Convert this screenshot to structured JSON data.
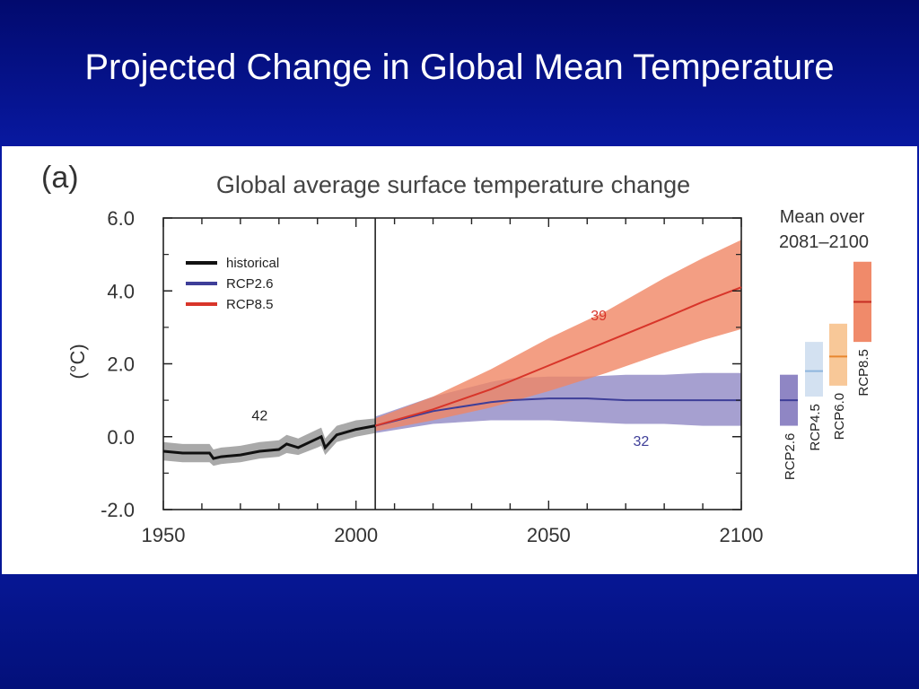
{
  "slide": {
    "title": "Projected Change in Global Mean Temperature"
  },
  "colors": {
    "background": "#0b20b8",
    "historical": "#111111",
    "rcp26": "#3e3e98",
    "rcp45": "#a9c7e6",
    "rcp60": "#f2a85a",
    "rcp85": "#d8352a"
  },
  "chart_data": {
    "type": "line",
    "panel_label": "(a)",
    "title": "Global average surface temperature change",
    "ylabel": "(°C)",
    "xlabel": "",
    "xlim": [
      1950,
      2100
    ],
    "ylim": [
      -2.0,
      6.0
    ],
    "x_ticks": [
      1950,
      2000,
      2050,
      2100
    ],
    "y_ticks": [
      "6.0",
      "4.0",
      "2.0",
      "0.0",
      "-2.0"
    ],
    "y_tick_values": [
      6.0,
      4.0,
      2.0,
      0.0,
      -2.0
    ],
    "divider_year": 2005,
    "legend": [
      "historical",
      "RCP2.6",
      "RCP8.5"
    ],
    "legend_position": "top-left",
    "series": [
      {
        "name": "historical",
        "color": "#111111",
        "x": [
          1950,
          1955,
          1960,
          1962,
          1963,
          1965,
          1970,
          1975,
          1980,
          1982,
          1985,
          1990,
          1991,
          1992,
          1995,
          2000,
          2005
        ],
        "y": [
          -0.4,
          -0.45,
          -0.45,
          -0.45,
          -0.6,
          -0.55,
          -0.5,
          -0.4,
          -0.35,
          -0.2,
          -0.3,
          -0.05,
          0.0,
          -0.3,
          0.05,
          0.2,
          0.3
        ],
        "band_low": [
          -0.65,
          -0.7,
          -0.7,
          -0.7,
          -0.8,
          -0.75,
          -0.7,
          -0.6,
          -0.55,
          -0.45,
          -0.5,
          -0.3,
          -0.25,
          -0.5,
          -0.15,
          0.0,
          0.1
        ],
        "band_high": [
          -0.15,
          -0.2,
          -0.2,
          -0.2,
          -0.35,
          -0.3,
          -0.25,
          -0.15,
          -0.1,
          0.05,
          -0.05,
          0.2,
          0.25,
          -0.05,
          0.3,
          0.45,
          0.5
        ],
        "models": "42"
      },
      {
        "name": "RCP2.6",
        "color": "#3e3e98",
        "x": [
          2005,
          2020,
          2035,
          2040,
          2050,
          2060,
          2070,
          2080,
          2090,
          2100
        ],
        "y": [
          0.3,
          0.7,
          0.95,
          1.0,
          1.05,
          1.05,
          1.0,
          1.0,
          1.0,
          1.0
        ],
        "band_low": [
          0.1,
          0.35,
          0.45,
          0.45,
          0.45,
          0.4,
          0.35,
          0.35,
          0.3,
          0.3
        ],
        "band_high": [
          0.55,
          1.1,
          1.5,
          1.6,
          1.65,
          1.65,
          1.7,
          1.7,
          1.75,
          1.75
        ],
        "models": "32"
      },
      {
        "name": "RCP8.5",
        "color": "#d8352a",
        "x": [
          2005,
          2020,
          2035,
          2050,
          2065,
          2080,
          2090,
          2100
        ],
        "y": [
          0.3,
          0.75,
          1.3,
          1.95,
          2.6,
          3.25,
          3.7,
          4.1
        ],
        "band_low": [
          0.15,
          0.45,
          0.8,
          1.25,
          1.75,
          2.3,
          2.65,
          2.95
        ],
        "band_high": [
          0.5,
          1.1,
          1.85,
          2.7,
          3.45,
          4.35,
          4.9,
          5.4
        ],
        "models": "39"
      }
    ],
    "side_panel": {
      "title_line1": "Mean over",
      "title_line2": "2081–2100",
      "bars": [
        {
          "name": "RCP2.6",
          "low": 0.3,
          "mean": 1.0,
          "high": 1.7,
          "fill": "#8f86c4",
          "line": "#3e3e98"
        },
        {
          "name": "RCP4.5",
          "low": 1.1,
          "mean": 1.8,
          "high": 2.6,
          "fill": "#d3e1f1",
          "line": "#8fb6dd"
        },
        {
          "name": "RCP6.0",
          "low": 1.4,
          "mean": 2.2,
          "high": 3.1,
          "fill": "#f8c898",
          "line": "#e8862e"
        },
        {
          "name": "RCP8.5",
          "low": 2.6,
          "mean": 3.7,
          "high": 4.8,
          "fill": "#f08a6a",
          "line": "#c62c22"
        }
      ]
    }
  }
}
